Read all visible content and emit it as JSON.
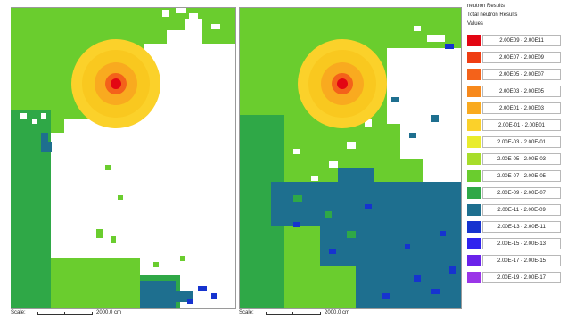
{
  "legend": {
    "title_lines": [
      "neutron Results",
      "Total neutron Results",
      "Values"
    ],
    "items": [
      {
        "range": "2.00E09 - 2.00E11",
        "color": "#e30613"
      },
      {
        "range": "2.00E07 - 2.00E09",
        "color": "#ef3d12"
      },
      {
        "range": "2.00E05 - 2.00E07",
        "color": "#f4621a"
      },
      {
        "range": "2.00E03 - 2.00E05",
        "color": "#f7891c"
      },
      {
        "range": "2.00E01 - 2.00E03",
        "color": "#f9aa1f"
      },
      {
        "range": "2.00E-01 - 2.00E01",
        "color": "#fbd12a"
      },
      {
        "range": "2.00E-03 - 2.00E-01",
        "color": "#e9ec2c"
      },
      {
        "range": "2.00E-05 - 2.00E-03",
        "color": "#a7dd2b"
      },
      {
        "range": "2.00E-07 - 2.00E-05",
        "color": "#6acd2e"
      },
      {
        "range": "2.00E-09 - 2.00E-07",
        "color": "#2fa847"
      },
      {
        "range": "2.00E-11 - 2.00E-09",
        "color": "#1e6f8f"
      },
      {
        "range": "2.00E-13 - 2.00E-11",
        "color": "#1633cf"
      },
      {
        "range": "2.00E-15 - 2.00E-13",
        "color": "#2f23ee"
      },
      {
        "range": "2.00E-17 - 2.00E-15",
        "color": "#6a22ea"
      },
      {
        "range": "2.00E-19 - 2.00E-17",
        "color": "#9a35e8"
      }
    ]
  },
  "scale": {
    "label": "Scale:",
    "value": "2000.0 cm"
  },
  "panels": {
    "left": {
      "name": "left-dose-map"
    },
    "right": {
      "name": "right-dose-map"
    }
  }
}
